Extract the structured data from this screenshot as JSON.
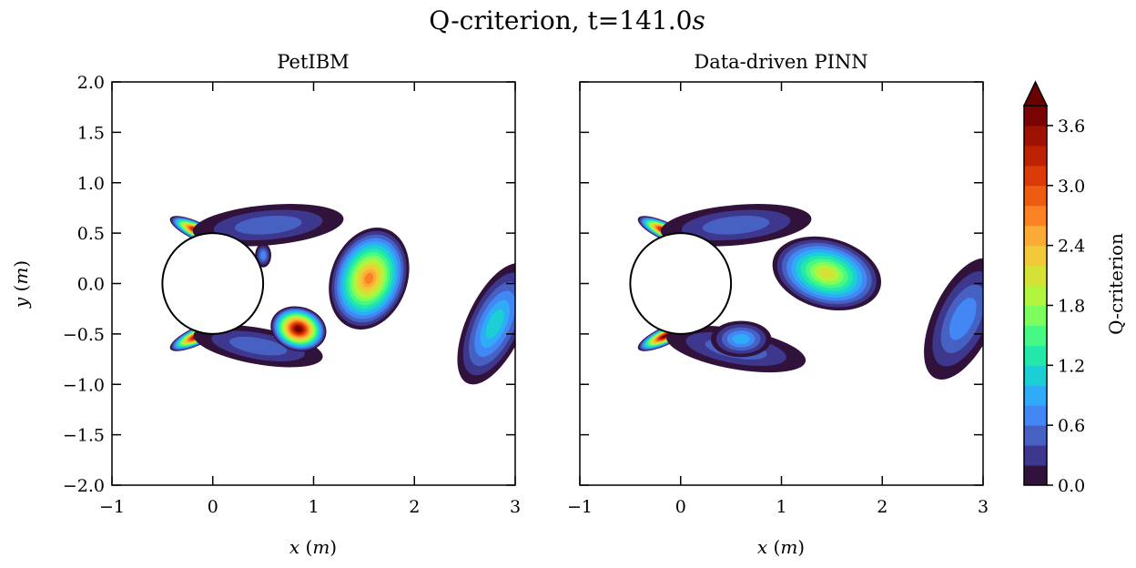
{
  "figure": {
    "title": "Q-criterion, t=141.0",
    "title_unit": "s"
  },
  "chart_data": [
    {
      "type": "contour",
      "title": "PetIBM",
      "xlabel": "x",
      "xlabel_unit": "m",
      "ylabel": "y",
      "ylabel_unit": "m",
      "xlim": [
        -1,
        3
      ],
      "ylim": [
        -2,
        2
      ],
      "xticks": [
        -1,
        0,
        1,
        2,
        3
      ],
      "xtick_labels": [
        "−1",
        "0",
        "1",
        "2",
        "3"
      ],
      "yticks": [
        -2.0,
        -1.5,
        -1.0,
        -0.5,
        0.0,
        0.5,
        1.0,
        1.5,
        2.0
      ],
      "ytick_labels": [
        "−2.0",
        "−1.5",
        "−1.0",
        "−0.5",
        "0.0",
        "0.5",
        "1.0",
        "1.5",
        "2.0"
      ],
      "cylinder": {
        "center": [
          0,
          0
        ],
        "radius": 0.5
      },
      "regions": [
        {
          "name": "upper-shear-layer",
          "cx": -0.15,
          "cy": 0.52,
          "rx": 0.3,
          "ry": 0.09,
          "rot": -25,
          "q": 4.0
        },
        {
          "name": "lower-shear-layer",
          "cx": -0.15,
          "cy": -0.52,
          "rx": 0.3,
          "ry": 0.09,
          "rot": 25,
          "q": 4.0
        },
        {
          "name": "upper-arc",
          "cx": 0.55,
          "cy": 0.58,
          "rx": 0.75,
          "ry": 0.2,
          "rot": 5,
          "q": 0.6
        },
        {
          "name": "lower-arc",
          "cx": 0.45,
          "cy": -0.62,
          "rx": 0.65,
          "ry": 0.18,
          "rot": -10,
          "q": 0.5
        },
        {
          "name": "upper-vortex",
          "cx": 1.55,
          "cy": 0.05,
          "rx": 0.38,
          "ry": 0.52,
          "rot": -20,
          "q": 2.8
        },
        {
          "name": "lower-vortex",
          "cx": 0.85,
          "cy": -0.45,
          "rx": 0.28,
          "ry": 0.22,
          "rot": -15,
          "q": 4.0
        },
        {
          "name": "small-blob",
          "cx": 0.5,
          "cy": 0.28,
          "rx": 0.08,
          "ry": 0.12,
          "rot": 0,
          "q": 0.8
        },
        {
          "name": "downstream-vortex",
          "cx": 2.8,
          "cy": -0.4,
          "rx": 0.28,
          "ry": 0.65,
          "rot": -25,
          "q": 1.2
        }
      ]
    },
    {
      "type": "contour",
      "title": "Data-driven PINN",
      "xlabel": "x",
      "xlabel_unit": "m",
      "ylabel": "",
      "ylabel_unit": "",
      "xlim": [
        -1,
        3
      ],
      "ylim": [
        -2,
        2
      ],
      "xticks": [
        -1,
        0,
        1,
        2,
        3
      ],
      "xtick_labels": [
        "−1",
        "0",
        "1",
        "2",
        "3"
      ],
      "yticks": [],
      "ytick_labels": [],
      "cylinder": {
        "center": [
          0,
          0
        ],
        "radius": 0.5
      },
      "regions": [
        {
          "name": "upper-shear-layer",
          "cx": -0.15,
          "cy": 0.52,
          "rx": 0.3,
          "ry": 0.09,
          "rot": -25,
          "q": 4.0
        },
        {
          "name": "lower-shear-layer",
          "cx": -0.15,
          "cy": -0.52,
          "rx": 0.3,
          "ry": 0.09,
          "rot": 25,
          "q": 4.0
        },
        {
          "name": "upper-arc",
          "cx": 0.55,
          "cy": 0.58,
          "rx": 0.75,
          "ry": 0.2,
          "rot": 5,
          "q": 0.6
        },
        {
          "name": "lower-arc",
          "cx": 0.55,
          "cy": -0.65,
          "rx": 0.7,
          "ry": 0.2,
          "rot": -10,
          "q": 0.6
        },
        {
          "name": "upper-vortex",
          "cx": 1.45,
          "cy": 0.1,
          "rx": 0.55,
          "ry": 0.35,
          "rot": -15,
          "q": 2.2
        },
        {
          "name": "lower-vortex",
          "cx": 0.6,
          "cy": -0.55,
          "rx": 0.3,
          "ry": 0.18,
          "rot": 0,
          "q": 1.0
        },
        {
          "name": "downstream-vortex",
          "cx": 2.8,
          "cy": -0.35,
          "rx": 0.3,
          "ry": 0.65,
          "rot": -25,
          "q": 0.8
        }
      ]
    }
  ],
  "colorbar": {
    "label": "Q-criterion",
    "vmin": 0.0,
    "vmax": 4.0,
    "levels": 20,
    "extend": "max",
    "ticks": [
      0.0,
      0.6,
      1.2,
      1.8,
      2.4,
      3.0,
      3.6
    ],
    "tick_labels": [
      "0.0",
      "0.6",
      "1.2",
      "1.8",
      "2.4",
      "3.0",
      "3.6"
    ],
    "colormap": "turbo",
    "colors": [
      "#30123b",
      "#3e378e",
      "#4661c1",
      "#4287f4",
      "#2fabf8",
      "#1bcfd4",
      "#24e8aa",
      "#46f884",
      "#7dfe5e",
      "#b1f53f",
      "#d5e135",
      "#f1c93a",
      "#fdaa36",
      "#fb8222",
      "#ee5c12",
      "#d93a07",
      "#bd2302",
      "#9e1202",
      "#7a0403",
      "#6b0202"
    ]
  }
}
